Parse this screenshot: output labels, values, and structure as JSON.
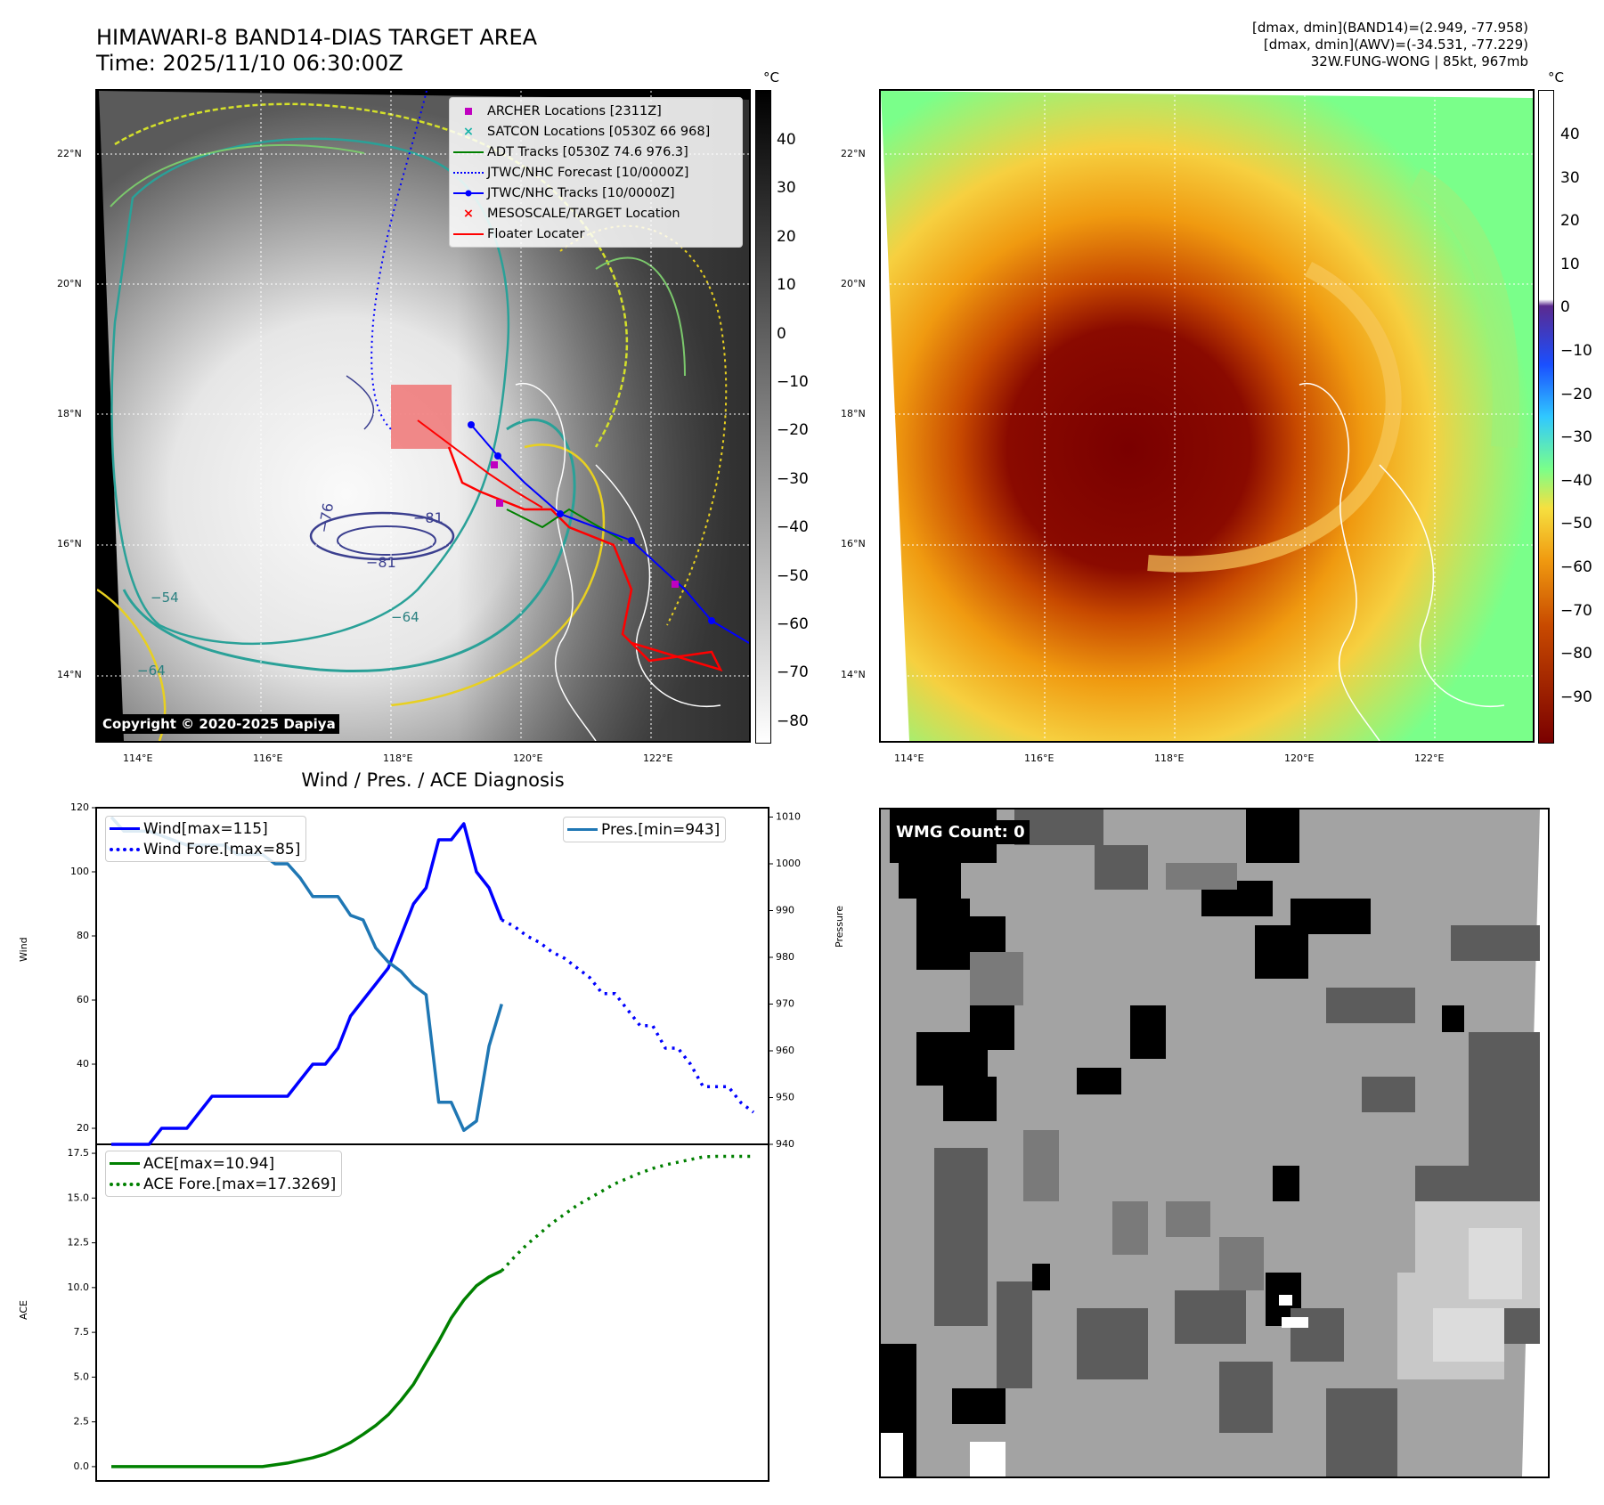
{
  "header": {
    "title_line1": "HIMAWARI-8 BAND14-DIAS TARGET AREA",
    "title_line2": "Time: 2025/11/10 06:30:00Z",
    "info_line1": "[dmax, dmin](BAND14)=(2.949, -77.958)",
    "info_line2": "[dmax, dmin](AWV)=(-34.531, -77.229)",
    "info_line3": "32W.FUNG-WONG | 85kt, 967mb"
  },
  "map_ir": {
    "lat_labels": [
      "22°N",
      "20°N",
      "18°N",
      "16°N",
      "14°N"
    ],
    "lon_labels": [
      "114°E",
      "116°E",
      "118°E",
      "120°E",
      "122°E"
    ],
    "colorbar_unit": "°C",
    "colorbar_ticks": [
      "40",
      "30",
      "20",
      "10",
      "0",
      "−10",
      "−20",
      "−30",
      "−40",
      "−50",
      "−60",
      "−70",
      "−80"
    ],
    "contour_labels": [
      "−76",
      "−81",
      "−81",
      "−64",
      "−54",
      "−64"
    ],
    "copyright": "Copyright © 2020-2025 Dapiya",
    "legend": [
      {
        "label": "ARCHER Locations [2311Z]",
        "color": "#c000c0",
        "marker": "square"
      },
      {
        "label": "SATCON Locations [0530Z 66 968]",
        "color": "#19b4a8",
        "marker": "x"
      },
      {
        "label": "ADT Tracks [0530Z 74.6 976.3]",
        "color": "#008000",
        "marker": "line"
      },
      {
        "label": "JTWC/NHC Forecast [10/0000Z]",
        "color": "#0000ff",
        "marker": "dotted"
      },
      {
        "label": "JTWC/NHC Tracks [10/0000Z]",
        "color": "#0000ff",
        "marker": "line-dot"
      },
      {
        "label": "MESOSCALE/TARGET Location",
        "color": "#ff0000",
        "marker": "x"
      },
      {
        "label": "Floater Locater",
        "color": "#ff0000",
        "marker": "line"
      }
    ]
  },
  "map_awv": {
    "lat_labels": [
      "22°N",
      "20°N",
      "18°N",
      "16°N",
      "14°N"
    ],
    "lon_labels": [
      "114°E",
      "116°E",
      "118°E",
      "120°E",
      "122°E"
    ],
    "colorbar_unit": "°C",
    "colorbar_ticks": [
      "40",
      "30",
      "20",
      "10",
      "0",
      "−10",
      "−20",
      "−30",
      "−40",
      "−50",
      "−60",
      "−70",
      "−80",
      "−90"
    ]
  },
  "wmg": {
    "label": "WMG Count: 0"
  },
  "chart_data": [
    {
      "type": "line",
      "title": "Wind / Pres. / ACE Diagnosis",
      "ylabel": "Wind",
      "ylabel_right": "Pressure",
      "ylim": [
        15,
        120
      ],
      "ylim_right": [
        940,
        1012
      ],
      "yticks": [
        "120",
        "100",
        "80",
        "60",
        "40",
        "20"
      ],
      "yticks_right": [
        "1010",
        "1000",
        "990",
        "980",
        "970",
        "960",
        "950",
        "940"
      ],
      "legend_left": [
        "Wind[max=115]",
        "Wind Fore.[max=85]"
      ],
      "legend_right": [
        "Pres.[min=943]"
      ],
      "series": [
        {
          "name": "Wind[max=115]",
          "color": "#0000ff",
          "style": "solid",
          "axis": "left",
          "x": [
            0,
            1,
            2,
            3,
            4,
            5,
            6,
            7,
            8,
            9,
            10,
            11,
            12,
            13,
            14,
            15,
            16,
            17,
            18,
            19,
            20,
            21,
            22,
            23,
            24,
            25,
            26,
            27,
            28,
            29,
            30,
            31
          ],
          "values": [
            15,
            15,
            15,
            15,
            20,
            20,
            20,
            25,
            30,
            30,
            30,
            30,
            30,
            30,
            30,
            35,
            40,
            40,
            45,
            55,
            60,
            65,
            70,
            80,
            90,
            95,
            110,
            110,
            115,
            100,
            95,
            85
          ]
        },
        {
          "name": "Wind Fore.[max=85]",
          "color": "#0000ff",
          "style": "dotted",
          "axis": "left",
          "x": [
            31,
            32,
            33,
            34,
            35,
            36,
            37,
            38,
            39,
            40,
            41,
            42,
            43,
            44,
            45,
            46,
            47,
            48,
            49,
            50,
            51
          ],
          "values": [
            85,
            83,
            80,
            78,
            75,
            73,
            70,
            67,
            62,
            62,
            57,
            52,
            52,
            45,
            45,
            40,
            33,
            33,
            33,
            28,
            25
          ]
        },
        {
          "name": "Pres.[min=943]",
          "color": "#1f77b4",
          "style": "solid",
          "axis": "right",
          "x": [
            0,
            1,
            2,
            3,
            4,
            5,
            6,
            7,
            8,
            9,
            10,
            11,
            12,
            13,
            14,
            15,
            16,
            17,
            18,
            19,
            20,
            21,
            22,
            23,
            24,
            25,
            26,
            27,
            28,
            29,
            30,
            31
          ],
          "values": [
            1010,
            1007,
            1007,
            1007,
            1006,
            1005,
            1004,
            1004,
            1004,
            1004,
            1002,
            1002,
            1002,
            1000,
            1000,
            997,
            993,
            993,
            993,
            989,
            988,
            982,
            979,
            977,
            974,
            972,
            949,
            949,
            943,
            945,
            961,
            970
          ]
        }
      ]
    },
    {
      "type": "line",
      "ylabel": "ACE",
      "ylim": [
        -0.8,
        18
      ],
      "yticks": [
        "17.5",
        "15.0",
        "12.5",
        "10.0",
        "7.5",
        "5.0",
        "2.5",
        "0.0"
      ],
      "legend": [
        "ACE[max=10.94]",
        "ACE Fore.[max=17.3269]"
      ],
      "series": [
        {
          "name": "ACE[max=10.94]",
          "color": "#008000",
          "style": "solid",
          "x": [
            0,
            1,
            2,
            3,
            4,
            5,
            6,
            7,
            8,
            9,
            10,
            11,
            12,
            13,
            14,
            15,
            16,
            17,
            18,
            19,
            20,
            21,
            22,
            23,
            24,
            25,
            26,
            27,
            28,
            29,
            30,
            31
          ],
          "values": [
            0,
            0,
            0,
            0,
            0,
            0,
            0,
            0,
            0,
            0,
            0,
            0,
            0,
            0.1,
            0.2,
            0.35,
            0.5,
            0.7,
            1.0,
            1.35,
            1.8,
            2.3,
            2.9,
            3.7,
            4.6,
            5.8,
            7.0,
            8.3,
            9.3,
            10.1,
            10.6,
            10.94
          ]
        },
        {
          "name": "ACE Fore.[max=17.3269]",
          "color": "#008000",
          "style": "dotted",
          "x": [
            31,
            32,
            33,
            34,
            35,
            36,
            37,
            38,
            39,
            40,
            41,
            42,
            43,
            44,
            45,
            46,
            47,
            48,
            49,
            50,
            51
          ],
          "values": [
            10.94,
            11.7,
            12.4,
            13.0,
            13.6,
            14.1,
            14.6,
            15.0,
            15.4,
            15.8,
            16.1,
            16.4,
            16.65,
            16.85,
            17.0,
            17.15,
            17.3,
            17.3269,
            17.3269,
            17.3269,
            17.3269
          ]
        }
      ]
    }
  ]
}
